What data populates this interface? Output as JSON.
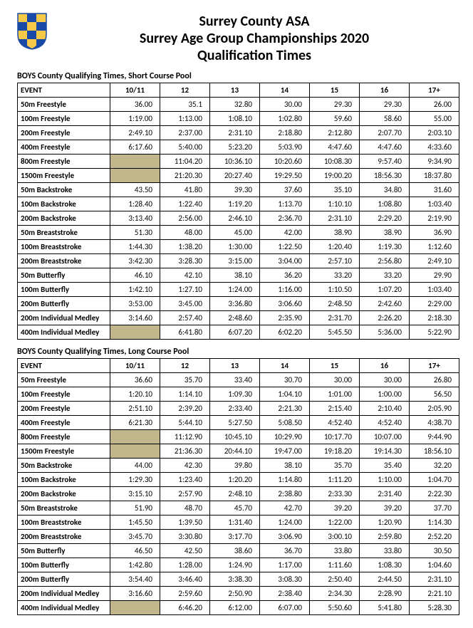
{
  "header": {
    "line1": "Surrey County ASA",
    "line2": "Surrey Age Group Championships 2020",
    "line3": "Qualification Times"
  },
  "columns": [
    "EVENT",
    "10/11",
    "12",
    "13",
    "14",
    "15",
    "16",
    "17+"
  ],
  "tables": [
    {
      "title": "BOYS County Qualifying Times, Short Course Pool",
      "rows": [
        {
          "event": "50m Freestyle",
          "t": [
            "36.00",
            "35.1",
            "32.80",
            "30.00",
            "29.30",
            "29.30",
            "26.00"
          ]
        },
        {
          "event": "100m Freestyle",
          "t": [
            "1:19.00",
            "1:13.00",
            "1:08.10",
            "1:02.80",
            "59.60",
            "58.60",
            "55.00"
          ]
        },
        {
          "event": "200m Freestyle",
          "t": [
            "2:49.10",
            "2:37.00",
            "2:31.10",
            "2:18.80",
            "2:12.80",
            "2:07.70",
            "2:03.10"
          ]
        },
        {
          "event": "400m Freestyle",
          "t": [
            "6:17.60",
            "5:40.00",
            "5:23.20",
            "5:03.90",
            "4:47.60",
            "4:47.60",
            "4:33.60"
          ]
        },
        {
          "event": "800m Freestyle",
          "t": [
            "",
            "11:04.20",
            "10:36.10",
            "10:20.60",
            "10:08.30",
            "9:57.40",
            "9:34.90"
          ],
          "shaded": [
            0
          ]
        },
        {
          "event": "1500m Freestyle",
          "t": [
            "",
            "21:20.30",
            "20:27.40",
            "19:29.50",
            "19:00.20",
            "18:56.30",
            "18:37.80"
          ],
          "shaded": [
            0
          ]
        },
        {
          "event": "50m Backstroke",
          "t": [
            "43.50",
            "41.80",
            "39.30",
            "37.60",
            "35.10",
            "34.80",
            "31.60"
          ]
        },
        {
          "event": "100m Backstroke",
          "t": [
            "1:28.40",
            "1:22.40",
            "1:19.20",
            "1:13.70",
            "1:10.10",
            "1:08.80",
            "1:03.40"
          ]
        },
        {
          "event": "200m Backstroke",
          "t": [
            "3:13.40",
            "2:56.00",
            "2:46.10",
            "2:36.70",
            "2:31.10",
            "2:29.20",
            "2:19.90"
          ]
        },
        {
          "event": "50m Breaststroke",
          "t": [
            "51.30",
            "48.00",
            "45.00",
            "42.00",
            "38.90",
            "38.90",
            "36.90"
          ]
        },
        {
          "event": "100m Breaststroke",
          "t": [
            "1:44.30",
            "1:38.20",
            "1:30.00",
            "1:22.50",
            "1:20.40",
            "1:19.30",
            "1:12.60"
          ]
        },
        {
          "event": "200m Breaststroke",
          "t": [
            "3:42.30",
            "3:28.30",
            "3:15.00",
            "3:04.00",
            "2:57.10",
            "2:56.80",
            "2:49.10"
          ]
        },
        {
          "event": "50m Butterfly",
          "t": [
            "46.10",
            "42.10",
            "38.10",
            "36.20",
            "33.20",
            "33.20",
            "29.90"
          ]
        },
        {
          "event": "100m Butterfly",
          "t": [
            "1:42.10",
            "1:27.10",
            "1:24.00",
            "1:16.00",
            "1:10.50",
            "1:07.20",
            "1:03.40"
          ]
        },
        {
          "event": "200m Butterfly",
          "t": [
            "3:53.00",
            "3:45.00",
            "3:36.80",
            "3:06.60",
            "2:48.50",
            "2:42.60",
            "2:29.00"
          ]
        },
        {
          "event": "200m Individual Medley",
          "t": [
            "3:14.60",
            "2:57.40",
            "2:48.60",
            "2:35.90",
            "2:31.70",
            "2:26.20",
            "2:18.30"
          ]
        },
        {
          "event": "400m Individual Medley",
          "t": [
            "",
            "6:41.80",
            "6:07.20",
            "6:02.20",
            "5:45.50",
            "5:36.00",
            "5:22.90"
          ],
          "shaded": [
            0
          ]
        }
      ]
    },
    {
      "title": "BOYS County Qualifying Times, Long Course Pool",
      "rows": [
        {
          "event": "50m Freestyle",
          "t": [
            "36.60",
            "35.70",
            "33.40",
            "30.70",
            "30.00",
            "30.00",
            "26.80"
          ]
        },
        {
          "event": "100m Freestyle",
          "t": [
            "1:20.10",
            "1:14.10",
            "1:09.30",
            "1:04.10",
            "1:01.00",
            "1:00.00",
            "56.50"
          ]
        },
        {
          "event": "200m Freestyle",
          "t": [
            "2:51.10",
            "2:39.20",
            "2:33.40",
            "2:21.30",
            "2:15.40",
            "2:10.40",
            "2:05.90"
          ]
        },
        {
          "event": "400m Freestyle",
          "t": [
            "6:21.30",
            "5:44.10",
            "5:27.50",
            "5:08.50",
            "4:52.40",
            "4:52.40",
            "4:38.70"
          ]
        },
        {
          "event": "800m Freestyle",
          "t": [
            "",
            "11:12.90",
            "10:45.10",
            "10:29.90",
            "10:17.70",
            "10:07.00",
            "9:44.90"
          ],
          "shaded": [
            0
          ]
        },
        {
          "event": "1500m Freestyle",
          "t": [
            "",
            "21:36.30",
            "20:44.10",
            "19:47.00",
            "19:18.20",
            "19:14.30",
            "18:56.10"
          ],
          "shaded": [
            0
          ]
        },
        {
          "event": "50m Backstroke",
          "t": [
            "44.00",
            "42.30",
            "39.80",
            "38.10",
            "35.70",
            "35.40",
            "32.20"
          ]
        },
        {
          "event": "100m Backstroke",
          "t": [
            "1:29.30",
            "1:23.40",
            "1:20.20",
            "1:14.80",
            "1:11.20",
            "1:10.00",
            "1:04.70"
          ]
        },
        {
          "event": "200m Backstroke",
          "t": [
            "3:15.10",
            "2:57.90",
            "2:48.10",
            "2:38.80",
            "2:33.30",
            "2:31.40",
            "2:22.30"
          ]
        },
        {
          "event": "50m Breaststroke",
          "t": [
            "51.90",
            "48.70",
            "45.70",
            "42.70",
            "39.20",
            "39.20",
            "37.70"
          ]
        },
        {
          "event": "100m Breaststroke",
          "t": [
            "1:45.50",
            "1:39.50",
            "1:31.40",
            "1:24.00",
            "1:22.00",
            "1:20.90",
            "1:14.30"
          ]
        },
        {
          "event": "200m Breaststroke",
          "t": [
            "3:45.70",
            "3:30.80",
            "3:17.70",
            "3:06.90",
            "3:00.10",
            "2:59.80",
            "2:52.20"
          ]
        },
        {
          "event": "50m Butterfly",
          "t": [
            "46.50",
            "42.50",
            "38.60",
            "36.70",
            "33.80",
            "33.80",
            "30.50"
          ]
        },
        {
          "event": "100m Butterfly",
          "t": [
            "1:42.80",
            "1:28.00",
            "1:24.90",
            "1:17.00",
            "1:11.60",
            "1:08.30",
            "1:04.60"
          ]
        },
        {
          "event": "200m Butterfly",
          "t": [
            "3:54.40",
            "3:46.40",
            "3:38.30",
            "3:08.30",
            "2:50.40",
            "2:44.50",
            "2:31.10"
          ]
        },
        {
          "event": "200m Individual Medley",
          "t": [
            "3:16.60",
            "2:59.60",
            "2:50.90",
            "2:38.40",
            "2:34.30",
            "2:28.90",
            "2:21.10"
          ]
        },
        {
          "event": "400m Individual Medley",
          "t": [
            "",
            "6:46.20",
            "6:12.00",
            "6:07.00",
            "5:50.60",
            "5:41.80",
            "5:28.30"
          ],
          "shaded": [
            0
          ]
        }
      ]
    }
  ]
}
